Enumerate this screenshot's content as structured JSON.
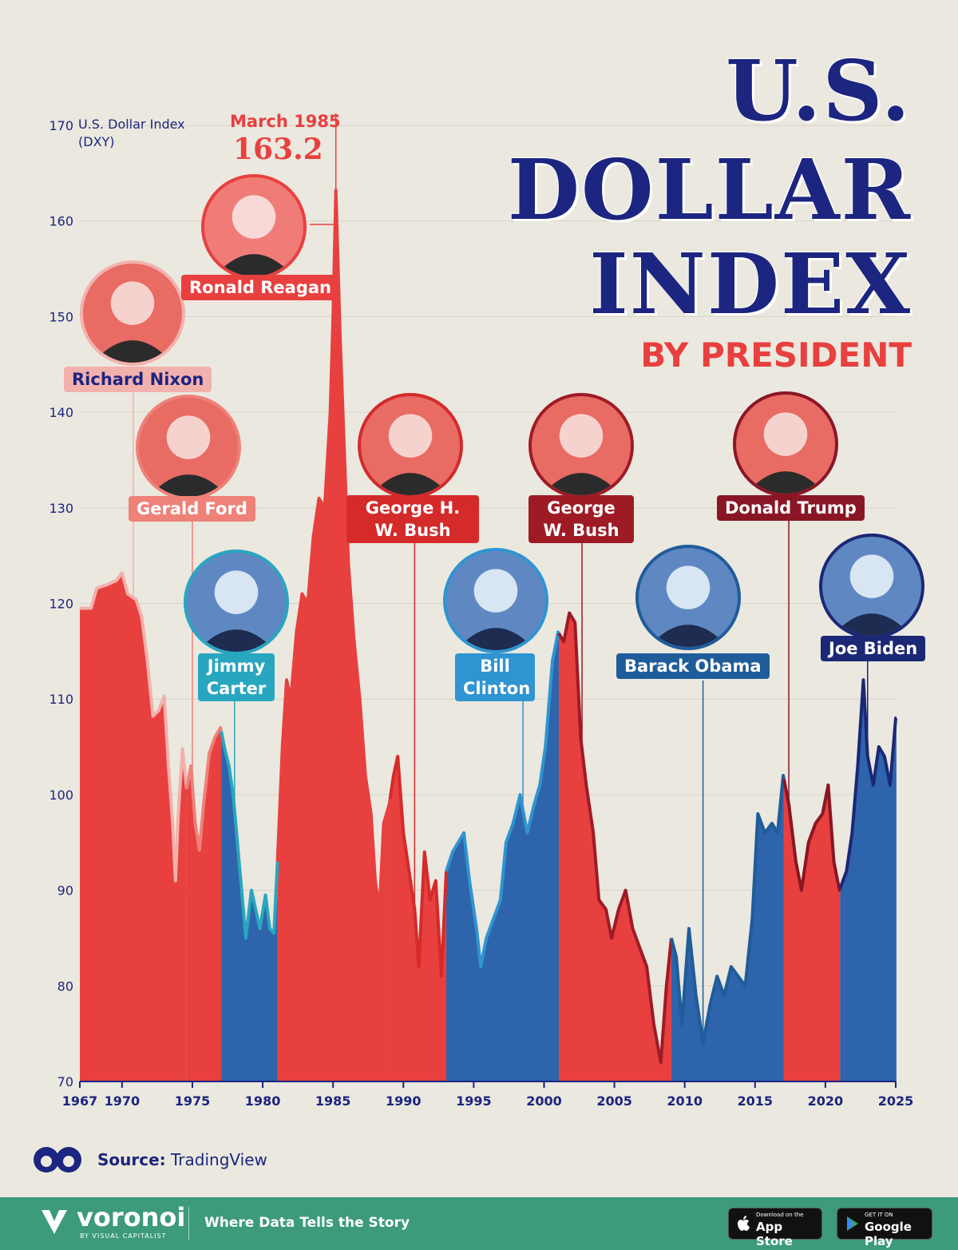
{
  "title": {
    "line1": "U.S.",
    "line2": "DOLLAR",
    "line3": "INDEX",
    "subtitle": "BY PRESIDENT"
  },
  "y_axis_label": "U.S. Dollar Index (DXY)",
  "peak": {
    "date": "March 1985",
    "value": "163.2"
  },
  "source": {
    "label": "Source:",
    "value": "TradingView"
  },
  "footer": {
    "brand": "voronoi",
    "brand_sub": "BY VISUAL CAPITALIST",
    "tagline": "Where Data Tells the Story",
    "app_store_small": "Download on the",
    "app_store": "App Store",
    "google_play_small": "GET IT ON",
    "google_play": "Google Play"
  },
  "colors": {
    "republican": "#e8403f",
    "democrat": "#2e64ab",
    "nixon": "#f3b1ad",
    "ford": "#ee8178",
    "carter": "#29a6bf",
    "hwbush": "#d42a2a",
    "clinton": "#2f94d2",
    "wbush": "#9e1b26",
    "obama": "#1f5c9a",
    "trump": "#8a1625",
    "biden": "#1b2876",
    "axis": "#1c2580"
  },
  "presidents": [
    {
      "name": "Richard Nixon",
      "start": 1967.0,
      "end": 1974.6,
      "color": "#f3b1ad",
      "label_color": "#f3b1ad",
      "text_color": "#1c2580"
    },
    {
      "name": "Gerald Ford",
      "start": 1974.6,
      "end": 1977.05,
      "color": "#ee8178",
      "label_color": "#ee8178",
      "text_color": "#ffffff"
    },
    {
      "name": "Jimmy Carter",
      "start": 1977.05,
      "end": 1981.05,
      "color": "#29a6bf",
      "label_color": "#29a6bf",
      "text_color": "#ffffff"
    },
    {
      "name": "Ronald Reagan",
      "start": 1981.05,
      "end": 1989.05,
      "color": "#e8403f",
      "label_color": "#e8403f",
      "text_color": "#ffffff"
    },
    {
      "name": "George H. W. Bush",
      "start": 1989.05,
      "end": 1993.05,
      "color": "#d42a2a",
      "label_color": "#d42a2a",
      "text_color": "#ffffff"
    },
    {
      "name": "Bill Clinton",
      "start": 1993.05,
      "end": 2001.05,
      "color": "#2f94d2",
      "label_color": "#2f94d2",
      "text_color": "#ffffff"
    },
    {
      "name": "George W. Bush",
      "start": 2001.05,
      "end": 2009.05,
      "color": "#9e1b26",
      "label_color": "#9e1b26",
      "text_color": "#ffffff"
    },
    {
      "name": "Barack Obama",
      "start": 2009.05,
      "end": 2017.05,
      "color": "#1f5c9a",
      "label_color": "#1f5c9a",
      "text_color": "#ffffff"
    },
    {
      "name": "Donald Trump",
      "start": 2017.05,
      "end": 2021.05,
      "color": "#8a1625",
      "label_color": "#8a1625",
      "text_color": "#ffffff"
    },
    {
      "name": "Joe Biden",
      "start": 2021.05,
      "end": 2025.05,
      "color": "#1b2876",
      "label_color": "#1b2876",
      "text_color": "#ffffff"
    }
  ],
  "chart_data": {
    "type": "area",
    "ylabel": "U.S. Dollar Index (DXY)",
    "xlim": [
      1967,
      2025
    ],
    "ylim": [
      70,
      170
    ],
    "x_ticks": [
      1967,
      1970,
      1975,
      1980,
      1985,
      1990,
      1995,
      2000,
      2005,
      2010,
      2015,
      2020,
      2025
    ],
    "y_ticks": [
      70,
      80,
      90,
      100,
      110,
      120,
      130,
      140,
      150,
      160,
      170
    ],
    "annotation": {
      "x": 1985.2,
      "y": 163.2,
      "label": "March 1985",
      "value": "163.2"
    },
    "points": [
      [
        1967.0,
        119.5
      ],
      [
        1967.8,
        119.5
      ],
      [
        1968.2,
        121.6
      ],
      [
        1969.0,
        122.0
      ],
      [
        1969.6,
        122.4
      ],
      [
        1970.0,
        123.2
      ],
      [
        1970.4,
        121.0
      ],
      [
        1971.0,
        120.4
      ],
      [
        1971.4,
        118.6
      ],
      [
        1971.8,
        114.0
      ],
      [
        1972.2,
        108.2
      ],
      [
        1972.6,
        108.8
      ],
      [
        1973.0,
        110.3
      ],
      [
        1973.3,
        103.0
      ],
      [
        1973.6,
        97.0
      ],
      [
        1973.8,
        91.0
      ],
      [
        1974.0,
        98.0
      ],
      [
        1974.3,
        104.8
      ],
      [
        1974.6,
        100.6
      ],
      [
        1974.9,
        103.0
      ],
      [
        1975.2,
        97.0
      ],
      [
        1975.5,
        94.2
      ],
      [
        1975.8,
        99.0
      ],
      [
        1976.2,
        104.3
      ],
      [
        1976.6,
        106.0
      ],
      [
        1977.0,
        107.0
      ],
      [
        1977.3,
        104.8
      ],
      [
        1977.6,
        103.0
      ],
      [
        1977.9,
        100.0
      ],
      [
        1978.2,
        95.0
      ],
      [
        1978.5,
        90.0
      ],
      [
        1978.8,
        85.0
      ],
      [
        1979.2,
        90.0
      ],
      [
        1979.5,
        88.0
      ],
      [
        1979.8,
        86.0
      ],
      [
        1980.2,
        89.5
      ],
      [
        1980.5,
        86.0
      ],
      [
        1980.8,
        85.5
      ],
      [
        1981.05,
        93.0
      ],
      [
        1981.4,
        105.0
      ],
      [
        1981.7,
        112.0
      ],
      [
        1982.0,
        110.0
      ],
      [
        1982.4,
        117.0
      ],
      [
        1982.8,
        121.0
      ],
      [
        1983.2,
        120.0
      ],
      [
        1983.6,
        127.0
      ],
      [
        1984.0,
        131.0
      ],
      [
        1984.4,
        130.0
      ],
      [
        1984.8,
        140.0
      ],
      [
        1985.0,
        150.0
      ],
      [
        1985.2,
        163.2
      ],
      [
        1985.5,
        148.0
      ],
      [
        1985.8,
        136.0
      ],
      [
        1986.1,
        124.0
      ],
      [
        1986.5,
        116.0
      ],
      [
        1986.9,
        110.0
      ],
      [
        1987.3,
        102.0
      ],
      [
        1987.7,
        98.0
      ],
      [
        1988.0,
        91.0
      ],
      [
        1988.3,
        88.0
      ],
      [
        1988.6,
        97.0
      ],
      [
        1989.0,
        99.0
      ],
      [
        1989.3,
        102.0
      ],
      [
        1989.6,
        104.0
      ],
      [
        1990.0,
        96.0
      ],
      [
        1990.4,
        92.0
      ],
      [
        1990.8,
        88.0
      ],
      [
        1991.1,
        82.0
      ],
      [
        1991.5,
        94.0
      ],
      [
        1991.9,
        89.0
      ],
      [
        1992.3,
        91.0
      ],
      [
        1992.7,
        81.0
      ],
      [
        1993.05,
        92.0
      ],
      [
        1993.5,
        94.0
      ],
      [
        1993.9,
        95.0
      ],
      [
        1994.3,
        96.0
      ],
      [
        1994.7,
        91.0
      ],
      [
        1995.2,
        86.0
      ],
      [
        1995.5,
        82.0
      ],
      [
        1995.9,
        85.0
      ],
      [
        1996.4,
        87.0
      ],
      [
        1996.9,
        89.0
      ],
      [
        1997.3,
        95.0
      ],
      [
        1997.8,
        97.0
      ],
      [
        1998.3,
        100.0
      ],
      [
        1998.8,
        96.0
      ],
      [
        1999.3,
        99.0
      ],
      [
        1999.7,
        101.0
      ],
      [
        2000.1,
        105.0
      ],
      [
        2000.6,
        114.0
      ],
      [
        2001.0,
        117.0
      ],
      [
        2001.4,
        116.0
      ],
      [
        2001.8,
        119.0
      ],
      [
        2002.2,
        118.0
      ],
      [
        2002.6,
        106.0
      ],
      [
        2003.0,
        101.0
      ],
      [
        2003.5,
        96.0
      ],
      [
        2003.9,
        89.0
      ],
      [
        2004.4,
        88.0
      ],
      [
        2004.8,
        85.0
      ],
      [
        2005.3,
        88.0
      ],
      [
        2005.8,
        90.0
      ],
      [
        2006.3,
        86.0
      ],
      [
        2006.8,
        84.0
      ],
      [
        2007.3,
        82.0
      ],
      [
        2007.8,
        76.0
      ],
      [
        2008.3,
        72.0
      ],
      [
        2008.7,
        80.0
      ],
      [
        2009.05,
        85.0
      ],
      [
        2009.4,
        83.0
      ],
      [
        2009.8,
        76.0
      ],
      [
        2010.3,
        86.0
      ],
      [
        2010.8,
        79.0
      ],
      [
        2011.3,
        74.0
      ],
      [
        2011.8,
        78.0
      ],
      [
        2012.3,
        81.0
      ],
      [
        2012.8,
        79.0
      ],
      [
        2013.3,
        82.0
      ],
      [
        2013.8,
        81.0
      ],
      [
        2014.3,
        80.0
      ],
      [
        2014.8,
        87.0
      ],
      [
        2015.2,
        98.0
      ],
      [
        2015.7,
        96.0
      ],
      [
        2016.2,
        97.0
      ],
      [
        2016.6,
        96.0
      ],
      [
        2017.0,
        102.0
      ],
      [
        2017.4,
        99.0
      ],
      [
        2017.9,
        93.0
      ],
      [
        2018.3,
        90.0
      ],
      [
        2018.8,
        95.0
      ],
      [
        2019.3,
        97.0
      ],
      [
        2019.8,
        98.0
      ],
      [
        2020.2,
        101.0
      ],
      [
        2020.6,
        93.0
      ],
      [
        2021.0,
        90.0
      ],
      [
        2021.5,
        92.0
      ],
      [
        2021.9,
        96.0
      ],
      [
        2022.3,
        103.0
      ],
      [
        2022.7,
        112.0
      ],
      [
        2023.0,
        104.0
      ],
      [
        2023.4,
        101.0
      ],
      [
        2023.8,
        105.0
      ],
      [
        2024.2,
        104.0
      ],
      [
        2024.6,
        101.0
      ],
      [
        2025.0,
        108.0
      ]
    ]
  }
}
